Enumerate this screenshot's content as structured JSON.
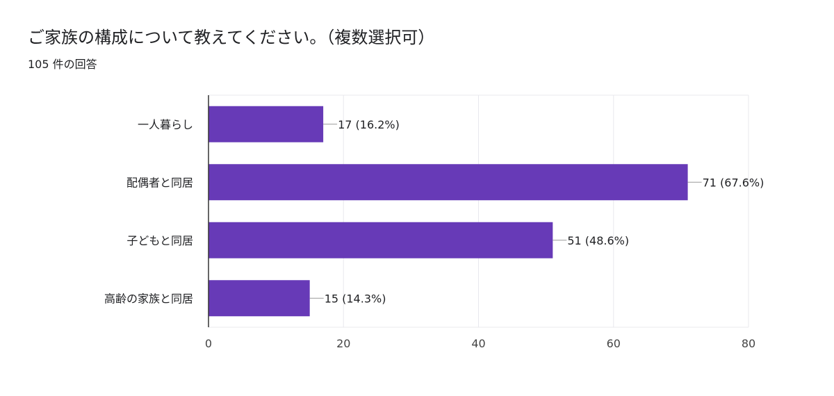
{
  "question": {
    "title": "ご家族の構成について教えてください。（複数選択可）",
    "response_count": "105 件の回答"
  },
  "colors": {
    "bar": "#673ab7",
    "grid": "#e8e8ee",
    "axis": "#333333",
    "label_line": "#999999",
    "text": "#202124"
  },
  "chart_data": {
    "type": "bar",
    "orientation": "horizontal",
    "categories": [
      "一人暮らし",
      "配偶者と同居",
      "子どもと同居",
      "高齢の家族と同居"
    ],
    "values": [
      17,
      71,
      51,
      15
    ],
    "data_labels": [
      "17 (16.2%)",
      "71 (67.6%)",
      "51 (48.6%)",
      "15 (14.3%)"
    ],
    "xlim": [
      0,
      80
    ],
    "xticks": [
      0,
      20,
      40,
      60,
      80
    ],
    "grid": true,
    "legend": "none"
  }
}
